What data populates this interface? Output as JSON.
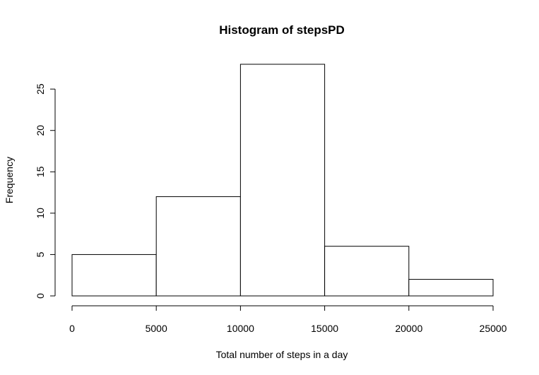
{
  "chart_data": {
    "type": "bar",
    "title": "Histogram of stepsPD",
    "xlabel": "Total number of steps in a day",
    "ylabel": "Frequency",
    "bins": [
      {
        "start": 0,
        "end": 5000,
        "count": 5
      },
      {
        "start": 5000,
        "end": 10000,
        "count": 12
      },
      {
        "start": 10000,
        "end": 15000,
        "count": 28
      },
      {
        "start": 15000,
        "end": 20000,
        "count": 6
      },
      {
        "start": 20000,
        "end": 25000,
        "count": 2
      }
    ],
    "xlim": [
      0,
      25000
    ],
    "ylim": [
      0,
      28
    ],
    "x_ticks": [
      "0",
      "5000",
      "10000",
      "15000",
      "20000",
      "25000"
    ],
    "y_ticks": [
      "0",
      "5",
      "10",
      "15",
      "20",
      "25"
    ],
    "grid": false,
    "legend": "none",
    "colors": {
      "bar_fill": "#ffffff",
      "bar_stroke": "#000000"
    }
  }
}
